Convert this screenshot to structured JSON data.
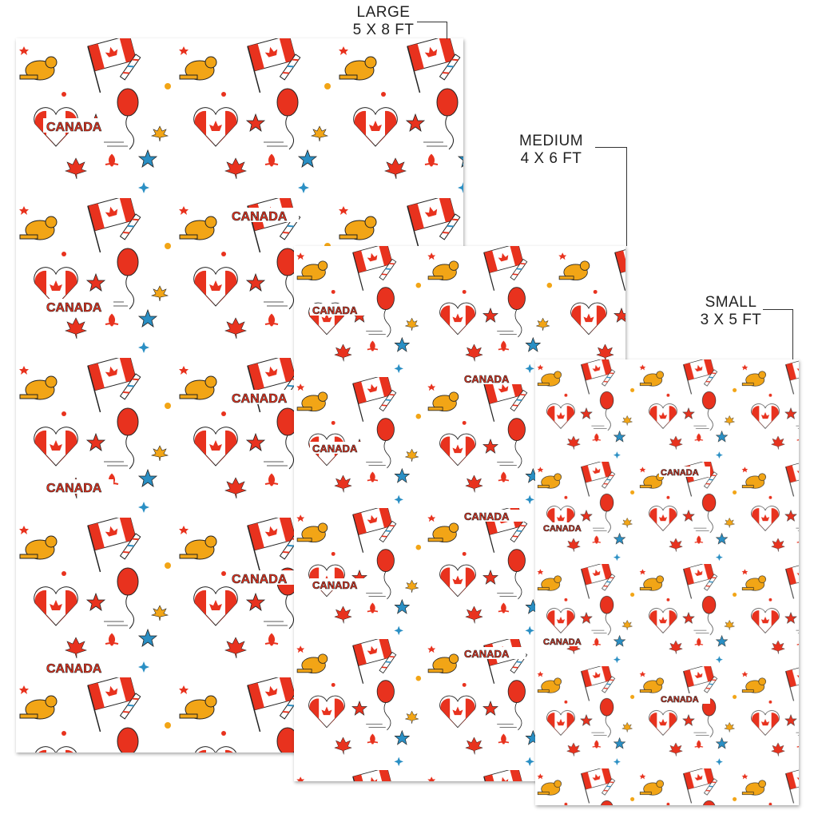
{
  "pattern": {
    "text": "CANADA",
    "colors": {
      "red": "#e8321e",
      "blue": "#2a8fc4",
      "orange": "#f2a516",
      "outline": "#222222",
      "background": "#ffffff"
    }
  },
  "sizes": [
    {
      "name": "LARGE",
      "dimensions": "5 X 8 FT"
    },
    {
      "name": "MEDIUM",
      "dimensions": "4 X 6 FT"
    },
    {
      "name": "SMALL",
      "dimensions": "3 X 5 FT"
    }
  ]
}
